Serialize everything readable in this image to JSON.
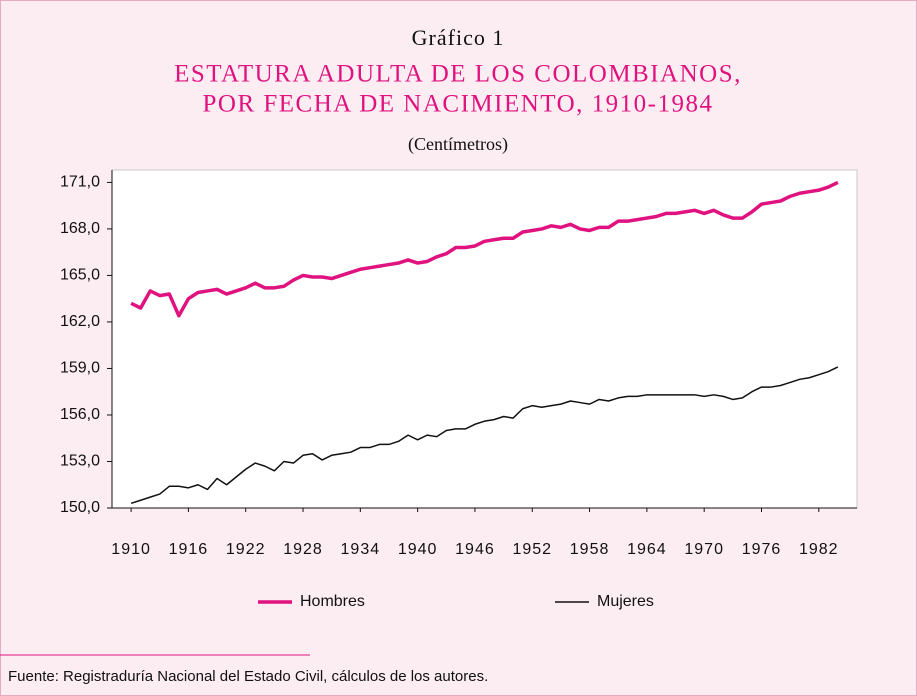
{
  "chart_data": {
    "type": "line",
    "label": "Gráfico 1",
    "title_lines": [
      "ESTATURA ADULTA DE LOS COLOMBIANOS,",
      "POR FECHA DE NACIMIENTO, 1910-1984"
    ],
    "subtitle": "(Centímetros)",
    "source": "Fuente: Registraduría Nacional del Estado Civil, cálculos de los autores.",
    "x": [
      1910,
      1911,
      1912,
      1913,
      1914,
      1915,
      1916,
      1917,
      1918,
      1919,
      1920,
      1921,
      1922,
      1923,
      1924,
      1925,
      1926,
      1927,
      1928,
      1929,
      1930,
      1931,
      1932,
      1933,
      1934,
      1935,
      1936,
      1937,
      1938,
      1939,
      1940,
      1941,
      1942,
      1943,
      1944,
      1945,
      1946,
      1947,
      1948,
      1949,
      1950,
      1951,
      1952,
      1953,
      1954,
      1955,
      1956,
      1957,
      1958,
      1959,
      1960,
      1961,
      1962,
      1963,
      1964,
      1965,
      1966,
      1967,
      1968,
      1969,
      1970,
      1971,
      1972,
      1973,
      1974,
      1975,
      1976,
      1977,
      1978,
      1979,
      1980,
      1981,
      1982,
      1983,
      1984
    ],
    "series": [
      {
        "name": "Hombres",
        "color": "#e0127f",
        "width": 3.5,
        "values": [
          163.2,
          162.9,
          164.0,
          163.7,
          163.8,
          162.4,
          163.5,
          163.9,
          164.0,
          164.1,
          163.8,
          164.0,
          164.2,
          164.5,
          164.2,
          164.2,
          164.3,
          164.7,
          165.0,
          164.9,
          164.9,
          164.8,
          165.0,
          165.2,
          165.4,
          165.5,
          165.6,
          165.7,
          165.8,
          166.0,
          165.8,
          165.9,
          166.2,
          166.4,
          166.8,
          166.8,
          166.9,
          167.2,
          167.3,
          167.4,
          167.4,
          167.8,
          167.9,
          168.0,
          168.2,
          168.1,
          168.3,
          168.0,
          167.9,
          168.1,
          168.1,
          168.5,
          168.5,
          168.6,
          168.7,
          168.8,
          169.0,
          169.0,
          169.1,
          169.2,
          169.0,
          169.2,
          168.9,
          168.7,
          168.7,
          169.1,
          169.6,
          169.7,
          169.8,
          170.1,
          170.3,
          170.4,
          170.5,
          170.7,
          171.0
        ]
      },
      {
        "name": "Mujeres",
        "color": "#111111",
        "width": 1.5,
        "values": [
          150.3,
          150.5,
          150.7,
          150.9,
          151.4,
          151.4,
          151.3,
          151.5,
          151.2,
          151.9,
          151.5,
          152.0,
          152.5,
          152.9,
          152.7,
          152.4,
          153.0,
          152.9,
          153.4,
          153.5,
          153.1,
          153.4,
          153.5,
          153.6,
          153.9,
          153.9,
          154.1,
          154.1,
          154.3,
          154.7,
          154.4,
          154.7,
          154.6,
          155.0,
          155.1,
          155.1,
          155.4,
          155.6,
          155.7,
          155.9,
          155.8,
          156.4,
          156.6,
          156.5,
          156.6,
          156.7,
          156.9,
          156.8,
          156.7,
          157.0,
          156.9,
          157.1,
          157.2,
          157.2,
          157.3,
          157.3,
          157.3,
          157.3,
          157.3,
          157.3,
          157.2,
          157.3,
          157.2,
          157.0,
          157.1,
          157.5,
          157.8,
          157.8,
          157.9,
          158.1,
          158.3,
          158.4,
          158.6,
          158.8,
          159.1
        ]
      }
    ],
    "xlim": [
      1908,
      1986
    ],
    "xticks": [
      1910,
      1916,
      1922,
      1928,
      1934,
      1940,
      1946,
      1952,
      1958,
      1964,
      1970,
      1976,
      1982
    ],
    "ylim": [
      150,
      171.8
    ],
    "yticks": [
      {
        "value": 150,
        "label": "150,0"
      },
      {
        "value": 153,
        "label": "153,0"
      },
      {
        "value": 156,
        "label": "156,0"
      },
      {
        "value": 159,
        "label": "159,0"
      },
      {
        "value": 162,
        "label": "162,0"
      },
      {
        "value": 165,
        "label": "165,0"
      },
      {
        "value": 168,
        "label": "168,0"
      },
      {
        "value": 171,
        "label": "171,0"
      }
    ],
    "grid": false
  }
}
